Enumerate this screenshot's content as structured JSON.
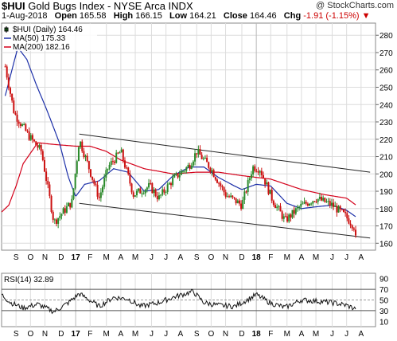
{
  "header": {
    "symbol": "$HUI",
    "name": "Gold Bugs Index - NYSE Arca INDX",
    "credit": "@ StockCharts.com",
    "date": "1-Aug-2018",
    "open_label": "Open",
    "open": "165.58",
    "high_label": "High",
    "high": "166.15",
    "low_label": "Low",
    "low": "164.21",
    "close_label": "Close",
    "close": "164.46",
    "chg_label": "Chg",
    "chg": "-1.91 (-1.15%)"
  },
  "legend": {
    "price": "$HUI (Daily) 164.46",
    "ma50": "MA(50) 175.33",
    "ma200": "MA(200) 182.16",
    "rsi": "RSI(14) 32.89"
  },
  "colors": {
    "up": "#2a8a2a",
    "down": "#cc1111",
    "ma50": "#1c2fa8",
    "ma200": "#d4001a",
    "trend": "#222222",
    "grid": "#dcdcdc",
    "rsi": "#111111"
  },
  "chart_data": [
    {
      "type": "candlestick",
      "ylim": [
        156,
        287
      ],
      "y_ticks": [
        160,
        170,
        180,
        190,
        200,
        210,
        220,
        230,
        240,
        250,
        260,
        270,
        280
      ],
      "x_labels": [
        "S",
        "O",
        "N",
        "D",
        "17",
        "F",
        "M",
        "A",
        "M",
        "J",
        "J",
        "A",
        "S",
        "O",
        "N",
        "D",
        "18",
        "F",
        "M",
        "A",
        "M",
        "J",
        "J",
        "A"
      ],
      "x_positions": [
        2016.71,
        2016.79,
        2016.87,
        2016.96,
        2017.04,
        2017.12,
        2017.21,
        2017.29,
        2017.37,
        2017.46,
        2017.54,
        2017.62,
        2017.71,
        2017.79,
        2017.87,
        2017.96,
        2018.04,
        2018.12,
        2018.21,
        2018.29,
        2018.37,
        2018.46,
        2018.54,
        2018.62
      ],
      "price_keypoints": [
        [
          2016.65,
          262
        ],
        [
          2016.7,
          235
        ],
        [
          2016.78,
          222
        ],
        [
          2016.85,
          213
        ],
        [
          2016.92,
          172
        ],
        [
          2017.02,
          184
        ],
        [
          2017.06,
          220
        ],
        [
          2017.17,
          186
        ],
        [
          2017.22,
          204
        ],
        [
          2017.29,
          213
        ],
        [
          2017.36,
          188
        ],
        [
          2017.45,
          193
        ],
        [
          2017.5,
          186
        ],
        [
          2017.58,
          197
        ],
        [
          2017.67,
          205
        ],
        [
          2017.71,
          213
        ],
        [
          2017.79,
          203
        ],
        [
          2017.87,
          188
        ],
        [
          2017.96,
          182
        ],
        [
          2018.02,
          204
        ],
        [
          2018.06,
          203
        ],
        [
          2018.13,
          185
        ],
        [
          2018.2,
          173
        ],
        [
          2018.28,
          181
        ],
        [
          2018.37,
          186
        ],
        [
          2018.46,
          182
        ],
        [
          2018.53,
          176
        ],
        [
          2018.58,
          170
        ],
        [
          2018.59,
          164.46
        ]
      ],
      "ma50_keypoints": [
        [
          2016.65,
          245
        ],
        [
          2016.72,
          273
        ],
        [
          2016.77,
          266
        ],
        [
          2016.82,
          252
        ],
        [
          2016.88,
          237
        ],
        [
          2016.95,
          218
        ],
        [
          2017.0,
          198
        ],
        [
          2017.04,
          187
        ],
        [
          2017.09,
          194
        ],
        [
          2017.17,
          196
        ],
        [
          2017.25,
          203
        ],
        [
          2017.33,
          201
        ],
        [
          2017.42,
          190
        ],
        [
          2017.5,
          191
        ],
        [
          2017.58,
          199
        ],
        [
          2017.67,
          204
        ],
        [
          2017.75,
          204
        ],
        [
          2017.83,
          198
        ],
        [
          2017.92,
          193
        ],
        [
          2017.96,
          191
        ],
        [
          2018.04,
          194
        ],
        [
          2018.12,
          193
        ],
        [
          2018.21,
          183
        ],
        [
          2018.29,
          180
        ],
        [
          2018.37,
          181
        ],
        [
          2018.46,
          182
        ],
        [
          2018.54,
          179
        ],
        [
          2018.59,
          175.33
        ]
      ],
      "ma200_keypoints": [
        [
          2016.63,
          178
        ],
        [
          2016.67,
          182
        ],
        [
          2016.71,
          193
        ],
        [
          2016.75,
          206
        ],
        [
          2016.83,
          218
        ],
        [
          2016.92,
          217
        ],
        [
          2017.04,
          216
        ],
        [
          2017.12,
          216
        ],
        [
          2017.21,
          213
        ],
        [
          2017.29,
          208
        ],
        [
          2017.42,
          203
        ],
        [
          2017.58,
          200
        ],
        [
          2017.71,
          201
        ],
        [
          2017.83,
          201
        ],
        [
          2017.96,
          199
        ],
        [
          2018.12,
          197
        ],
        [
          2018.29,
          191
        ],
        [
          2018.42,
          188
        ],
        [
          2018.54,
          186
        ],
        [
          2018.59,
          182.16
        ]
      ],
      "trend_upper": [
        [
          2017.06,
          223
        ],
        [
          2018.67,
          201
        ]
      ],
      "trend_lower": [
        [
          2017.06,
          183
        ],
        [
          2018.67,
          163
        ]
      ]
    },
    {
      "type": "line",
      "ylim": [
        0,
        100
      ],
      "y_ticks": [
        10,
        30,
        50,
        70,
        90
      ],
      "reference_lines": [
        30,
        50,
        70
      ],
      "rsi_keypoints": [
        [
          2016.63,
          60
        ],
        [
          2016.68,
          45
        ],
        [
          2016.75,
          35
        ],
        [
          2016.83,
          42
        ],
        [
          2016.92,
          28
        ],
        [
          2017.0,
          45
        ],
        [
          2017.06,
          62
        ],
        [
          2017.17,
          38
        ],
        [
          2017.25,
          55
        ],
        [
          2017.33,
          52
        ],
        [
          2017.4,
          38
        ],
        [
          2017.5,
          45
        ],
        [
          2017.58,
          55
        ],
        [
          2017.65,
          62
        ],
        [
          2017.69,
          66
        ],
        [
          2017.75,
          45
        ],
        [
          2017.83,
          40
        ],
        [
          2017.92,
          38
        ],
        [
          2018.0,
          52
        ],
        [
          2018.04,
          60
        ],
        [
          2018.12,
          44
        ],
        [
          2018.2,
          36
        ],
        [
          2018.29,
          50
        ],
        [
          2018.37,
          48
        ],
        [
          2018.46,
          45
        ],
        [
          2018.54,
          40
        ],
        [
          2018.59,
          32.89
        ]
      ]
    }
  ]
}
